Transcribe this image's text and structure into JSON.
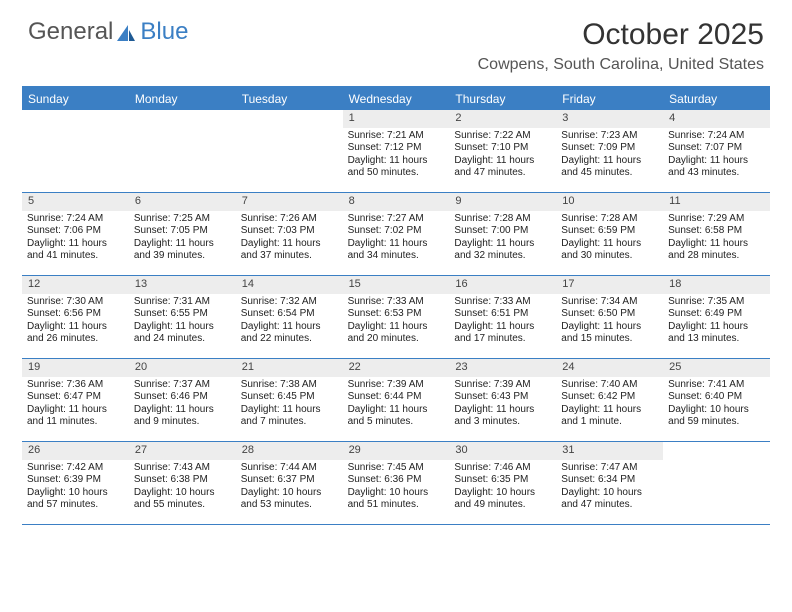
{
  "logo": {
    "text1": "General",
    "text2": "Blue"
  },
  "title": "October 2025",
  "location": "Cowpens, South Carolina, United States",
  "colors": {
    "accent": "#3b7fc4",
    "header_bg": "#3b7fc4",
    "daynum_bg": "#ededed",
    "text": "#222222",
    "muted": "#555555",
    "bg": "#ffffff"
  },
  "typography": {
    "title_fontsize": 30,
    "location_fontsize": 16,
    "dow_fontsize": 12,
    "daynum_fontsize": 11,
    "body_fontsize": 10
  },
  "days_of_week": [
    "Sunday",
    "Monday",
    "Tuesday",
    "Wednesday",
    "Thursday",
    "Friday",
    "Saturday"
  ],
  "weeks": [
    [
      null,
      null,
      null,
      {
        "n": "1",
        "sr": "Sunrise: 7:21 AM",
        "ss": "Sunset: 7:12 PM",
        "d1": "Daylight: 11 hours",
        "d2": "and 50 minutes."
      },
      {
        "n": "2",
        "sr": "Sunrise: 7:22 AM",
        "ss": "Sunset: 7:10 PM",
        "d1": "Daylight: 11 hours",
        "d2": "and 47 minutes."
      },
      {
        "n": "3",
        "sr": "Sunrise: 7:23 AM",
        "ss": "Sunset: 7:09 PM",
        "d1": "Daylight: 11 hours",
        "d2": "and 45 minutes."
      },
      {
        "n": "4",
        "sr": "Sunrise: 7:24 AM",
        "ss": "Sunset: 7:07 PM",
        "d1": "Daylight: 11 hours",
        "d2": "and 43 minutes."
      }
    ],
    [
      {
        "n": "5",
        "sr": "Sunrise: 7:24 AM",
        "ss": "Sunset: 7:06 PM",
        "d1": "Daylight: 11 hours",
        "d2": "and 41 minutes."
      },
      {
        "n": "6",
        "sr": "Sunrise: 7:25 AM",
        "ss": "Sunset: 7:05 PM",
        "d1": "Daylight: 11 hours",
        "d2": "and 39 minutes."
      },
      {
        "n": "7",
        "sr": "Sunrise: 7:26 AM",
        "ss": "Sunset: 7:03 PM",
        "d1": "Daylight: 11 hours",
        "d2": "and 37 minutes."
      },
      {
        "n": "8",
        "sr": "Sunrise: 7:27 AM",
        "ss": "Sunset: 7:02 PM",
        "d1": "Daylight: 11 hours",
        "d2": "and 34 minutes."
      },
      {
        "n": "9",
        "sr": "Sunrise: 7:28 AM",
        "ss": "Sunset: 7:00 PM",
        "d1": "Daylight: 11 hours",
        "d2": "and 32 minutes."
      },
      {
        "n": "10",
        "sr": "Sunrise: 7:28 AM",
        "ss": "Sunset: 6:59 PM",
        "d1": "Daylight: 11 hours",
        "d2": "and 30 minutes."
      },
      {
        "n": "11",
        "sr": "Sunrise: 7:29 AM",
        "ss": "Sunset: 6:58 PM",
        "d1": "Daylight: 11 hours",
        "d2": "and 28 minutes."
      }
    ],
    [
      {
        "n": "12",
        "sr": "Sunrise: 7:30 AM",
        "ss": "Sunset: 6:56 PM",
        "d1": "Daylight: 11 hours",
        "d2": "and 26 minutes."
      },
      {
        "n": "13",
        "sr": "Sunrise: 7:31 AM",
        "ss": "Sunset: 6:55 PM",
        "d1": "Daylight: 11 hours",
        "d2": "and 24 minutes."
      },
      {
        "n": "14",
        "sr": "Sunrise: 7:32 AM",
        "ss": "Sunset: 6:54 PM",
        "d1": "Daylight: 11 hours",
        "d2": "and 22 minutes."
      },
      {
        "n": "15",
        "sr": "Sunrise: 7:33 AM",
        "ss": "Sunset: 6:53 PM",
        "d1": "Daylight: 11 hours",
        "d2": "and 20 minutes."
      },
      {
        "n": "16",
        "sr": "Sunrise: 7:33 AM",
        "ss": "Sunset: 6:51 PM",
        "d1": "Daylight: 11 hours",
        "d2": "and 17 minutes."
      },
      {
        "n": "17",
        "sr": "Sunrise: 7:34 AM",
        "ss": "Sunset: 6:50 PM",
        "d1": "Daylight: 11 hours",
        "d2": "and 15 minutes."
      },
      {
        "n": "18",
        "sr": "Sunrise: 7:35 AM",
        "ss": "Sunset: 6:49 PM",
        "d1": "Daylight: 11 hours",
        "d2": "and 13 minutes."
      }
    ],
    [
      {
        "n": "19",
        "sr": "Sunrise: 7:36 AM",
        "ss": "Sunset: 6:47 PM",
        "d1": "Daylight: 11 hours",
        "d2": "and 11 minutes."
      },
      {
        "n": "20",
        "sr": "Sunrise: 7:37 AM",
        "ss": "Sunset: 6:46 PM",
        "d1": "Daylight: 11 hours",
        "d2": "and 9 minutes."
      },
      {
        "n": "21",
        "sr": "Sunrise: 7:38 AM",
        "ss": "Sunset: 6:45 PM",
        "d1": "Daylight: 11 hours",
        "d2": "and 7 minutes."
      },
      {
        "n": "22",
        "sr": "Sunrise: 7:39 AM",
        "ss": "Sunset: 6:44 PM",
        "d1": "Daylight: 11 hours",
        "d2": "and 5 minutes."
      },
      {
        "n": "23",
        "sr": "Sunrise: 7:39 AM",
        "ss": "Sunset: 6:43 PM",
        "d1": "Daylight: 11 hours",
        "d2": "and 3 minutes."
      },
      {
        "n": "24",
        "sr": "Sunrise: 7:40 AM",
        "ss": "Sunset: 6:42 PM",
        "d1": "Daylight: 11 hours",
        "d2": "and 1 minute."
      },
      {
        "n": "25",
        "sr": "Sunrise: 7:41 AM",
        "ss": "Sunset: 6:40 PM",
        "d1": "Daylight: 10 hours",
        "d2": "and 59 minutes."
      }
    ],
    [
      {
        "n": "26",
        "sr": "Sunrise: 7:42 AM",
        "ss": "Sunset: 6:39 PM",
        "d1": "Daylight: 10 hours",
        "d2": "and 57 minutes."
      },
      {
        "n": "27",
        "sr": "Sunrise: 7:43 AM",
        "ss": "Sunset: 6:38 PM",
        "d1": "Daylight: 10 hours",
        "d2": "and 55 minutes."
      },
      {
        "n": "28",
        "sr": "Sunrise: 7:44 AM",
        "ss": "Sunset: 6:37 PM",
        "d1": "Daylight: 10 hours",
        "d2": "and 53 minutes."
      },
      {
        "n": "29",
        "sr": "Sunrise: 7:45 AM",
        "ss": "Sunset: 6:36 PM",
        "d1": "Daylight: 10 hours",
        "d2": "and 51 minutes."
      },
      {
        "n": "30",
        "sr": "Sunrise: 7:46 AM",
        "ss": "Sunset: 6:35 PM",
        "d1": "Daylight: 10 hours",
        "d2": "and 49 minutes."
      },
      {
        "n": "31",
        "sr": "Sunrise: 7:47 AM",
        "ss": "Sunset: 6:34 PM",
        "d1": "Daylight: 10 hours",
        "d2": "and 47 minutes."
      },
      null
    ]
  ]
}
